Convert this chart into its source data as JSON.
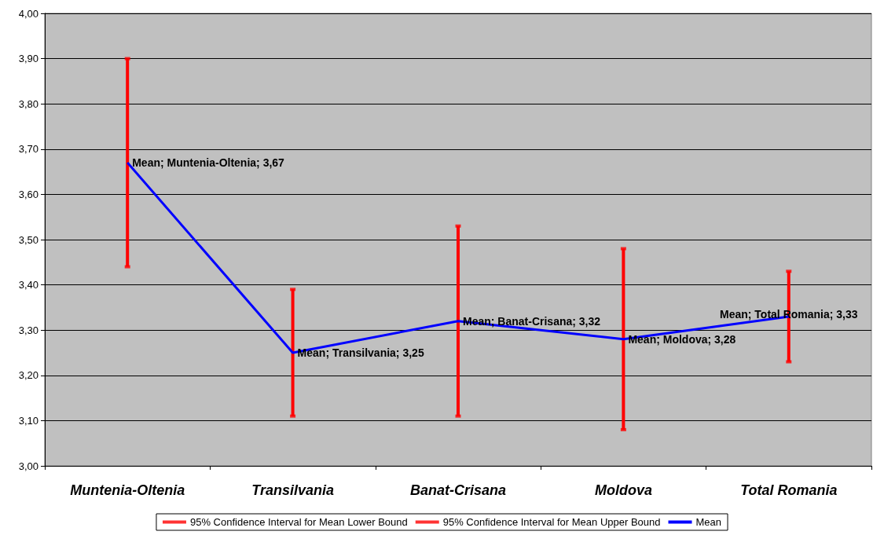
{
  "chart_data": {
    "type": "line",
    "categories": [
      "Muntenia-Oltenia",
      "Transilvania",
      "Banat-Crisana",
      "Moldova",
      "Total Romania"
    ],
    "series": [
      {
        "name": "95% Confidence Interval for Mean Lower Bound",
        "type": "scatter",
        "marker": "square",
        "color": "#ff0000",
        "values": [
          3.44,
          3.11,
          3.11,
          3.08,
          3.23
        ]
      },
      {
        "name": "95% Confidence Interval for Mean Upper Bound",
        "type": "scatter",
        "marker": "square",
        "color": "#ff0000",
        "values": [
          3.9,
          3.39,
          3.53,
          3.48,
          3.43
        ]
      },
      {
        "name": "Mean",
        "color": "#0000ff",
        "values": [
          3.67,
          3.25,
          3.32,
          3.28,
          3.33
        ],
        "errors": [
          [
            0.23,
            0.23
          ],
          [
            0.14,
            0.14
          ],
          [
            0.21,
            0.21
          ],
          [
            0.2,
            0.2
          ],
          [
            0.1,
            0.1
          ]
        ],
        "value_labels": [
          "Mean; Muntenia-Oltenia; 3,67",
          "Mean; Transilvania; 3,25",
          "Mean; Banat-Crisana; 3,32",
          "Mean; Moldova; 3,28",
          "Mean; Total Romania; 3,33"
        ]
      }
    ],
    "ylim": [
      3.0,
      4.0
    ],
    "yticks": [
      {
        "value": 3.0,
        "label": "3,00"
      },
      {
        "value": 3.1,
        "label": "3,10"
      },
      {
        "value": 3.2,
        "label": "3,20"
      },
      {
        "value": 3.3,
        "label": "3,30"
      },
      {
        "value": 3.4,
        "label": "3,40"
      },
      {
        "value": 3.5,
        "label": "3,50"
      },
      {
        "value": 3.6,
        "label": "3,60"
      },
      {
        "value": 3.7,
        "label": "3,70"
      },
      {
        "value": 3.8,
        "label": "3,80"
      },
      {
        "value": 3.9,
        "label": "3,90"
      },
      {
        "value": 4.0,
        "label": "4,00"
      }
    ],
    "grid": "y",
    "legend": "bottom",
    "marker": "none"
  }
}
